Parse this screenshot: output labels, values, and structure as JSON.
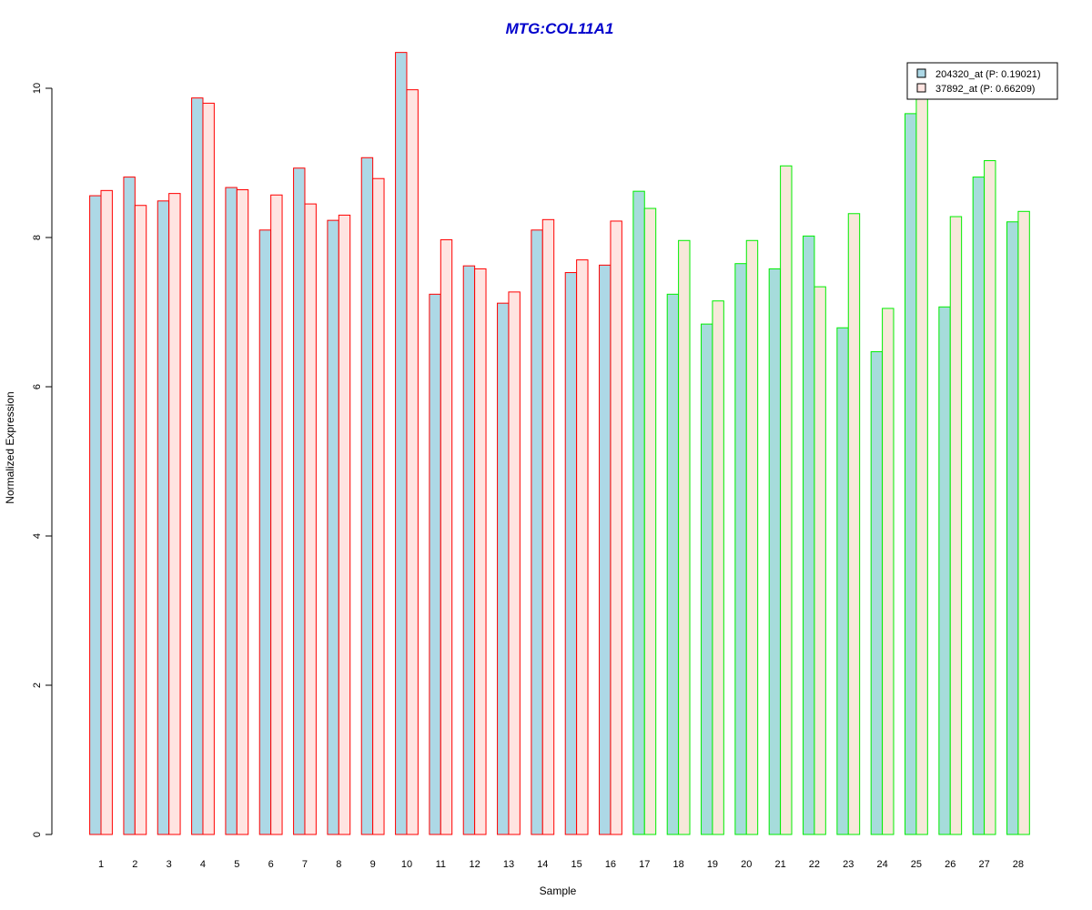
{
  "chart_data": {
    "type": "bar",
    "title": "MTG:COL11A1",
    "xlabel": "Sample",
    "ylabel": "Normalized Expression",
    "ylim": [
      0,
      10.5
    ],
    "yticks": [
      0,
      2,
      4,
      6,
      8,
      10
    ],
    "categories": [
      "1",
      "2",
      "3",
      "4",
      "5",
      "6",
      "7",
      "8",
      "9",
      "10",
      "11",
      "12",
      "13",
      "14",
      "15",
      "16",
      "17",
      "18",
      "19",
      "20",
      "21",
      "22",
      "23",
      "24",
      "25",
      "26",
      "27",
      "28"
    ],
    "group_border_colors": {
      "samples_1_16": "#ff0000",
      "samples_17_28": "#00ee00"
    },
    "series": [
      {
        "name": "204320_at (P: 0.19021)",
        "fill_group1": "#add8e6",
        "fill_group2": "#a6dcdb",
        "values": [
          8.56,
          8.81,
          8.49,
          9.87,
          8.67,
          8.1,
          8.93,
          8.23,
          9.07,
          10.48,
          7.24,
          7.62,
          7.12,
          8.1,
          7.53,
          7.63,
          8.62,
          7.24,
          6.84,
          7.65,
          7.58,
          8.02,
          6.79,
          6.47,
          9.66,
          7.07,
          8.81,
          8.21
        ]
      },
      {
        "name": "37892_at (P: 0.66209)",
        "fill_group1": "#ffe4e1",
        "fill_group2": "#f7e8da",
        "values": [
          8.63,
          8.43,
          8.59,
          9.8,
          8.64,
          8.57,
          8.45,
          8.3,
          8.79,
          9.98,
          7.97,
          7.58,
          7.27,
          8.24,
          7.7,
          8.22,
          8.39,
          7.96,
          7.15,
          7.96,
          8.96,
          7.34,
          8.32,
          7.05,
          10.02,
          8.28,
          9.03,
          8.35
        ]
      }
    ]
  }
}
